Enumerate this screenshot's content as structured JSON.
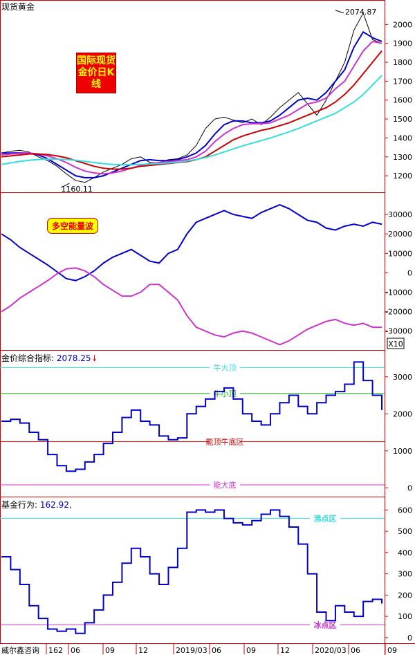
{
  "colors": {
    "blue": "#0000cc",
    "magenta": "#cc33cc",
    "red": "#cc0000",
    "cyan": "#33dddd",
    "green": "#00aa00",
    "black": "#000000"
  },
  "chart_data": [
    {
      "type": "line",
      "title": "现货黄金",
      "badge": "国际现货金价日K线",
      "annotations": [
        {
          "label": "2074.87",
          "x": 216,
          "y": 2074.87
        },
        {
          "label": "1160.11",
          "x": 44,
          "y": 1160.11
        }
      ],
      "ylim": [
        1120,
        2100
      ],
      "yticks": [
        "1200",
        "1300",
        "1400",
        "1500",
        "1600",
        "1700",
        "1800",
        "1900",
        "2000"
      ],
      "x": [
        0,
        6,
        12,
        18,
        24,
        30,
        36,
        42,
        48,
        54,
        60,
        66,
        72,
        78,
        84,
        90,
        96,
        102,
        108,
        114,
        120,
        126,
        132,
        138,
        144,
        150,
        156,
        162,
        168,
        174,
        180,
        186,
        192,
        198,
        204,
        210,
        216,
        222,
        228,
        234,
        240,
        246
      ],
      "series": [
        {
          "name": "",
          "color": "#000000",
          "values": [
            1320,
            1330,
            1335,
            1325,
            1300,
            1280,
            1250,
            1210,
            1175,
            1165,
            1190,
            1220,
            1240,
            1260,
            1290,
            1300,
            1270,
            1270,
            1285,
            1290,
            1310,
            1360,
            1450,
            1500,
            1510,
            1495,
            1480,
            1500,
            1470,
            1510,
            1560,
            1600,
            1640,
            1580,
            1520,
            1600,
            1700,
            1800,
            1970,
            2060,
            1920,
            1900
          ]
        },
        {
          "name": "",
          "color": "#0000cc",
          "values": [
            1320,
            1320,
            1320,
            1320,
            1310,
            1290,
            1260,
            1230,
            1200,
            1190,
            1190,
            1200,
            1220,
            1240,
            1260,
            1280,
            1285,
            1280,
            1280,
            1285,
            1300,
            1320,
            1360,
            1420,
            1470,
            1490,
            1490,
            1480,
            1480,
            1490,
            1520,
            1560,
            1600,
            1610,
            1600,
            1640,
            1700,
            1760,
            1880,
            1960,
            1930,
            1910
          ]
        },
        {
          "name": "",
          "color": "#cc33cc",
          "values": [
            1310,
            1315,
            1318,
            1320,
            1315,
            1305,
            1290,
            1270,
            1245,
            1225,
            1215,
            1210,
            1215,
            1225,
            1240,
            1255,
            1265,
            1270,
            1275,
            1280,
            1285,
            1300,
            1330,
            1380,
            1420,
            1450,
            1470,
            1475,
            1475,
            1480,
            1500,
            1520,
            1550,
            1580,
            1590,
            1610,
            1660,
            1700,
            1780,
            1860,
            1910,
            1900
          ]
        },
        {
          "name": "",
          "color": "#cc0000",
          "values": [
            1300,
            1305,
            1310,
            1315,
            1315,
            1312,
            1305,
            1295,
            1280,
            1265,
            1250,
            1240,
            1235,
            1235,
            1240,
            1250,
            1255,
            1260,
            1265,
            1270,
            1275,
            1285,
            1300,
            1330,
            1360,
            1390,
            1410,
            1425,
            1440,
            1450,
            1465,
            1480,
            1500,
            1520,
            1540,
            1560,
            1590,
            1630,
            1680,
            1740,
            1800,
            1860
          ]
        },
        {
          "name": "",
          "color": "#33dddd",
          "values": [
            1260,
            1268,
            1276,
            1282,
            1286,
            1288,
            1288,
            1286,
            1282,
            1276,
            1270,
            1264,
            1260,
            1258,
            1258,
            1260,
            1262,
            1265,
            1268,
            1272,
            1278,
            1286,
            1296,
            1310,
            1326,
            1342,
            1358,
            1372,
            1386,
            1400,
            1416,
            1432,
            1450,
            1470,
            1490,
            1510,
            1530,
            1560,
            1590,
            1630,
            1680,
            1730
          ]
        }
      ]
    },
    {
      "type": "line",
      "title": "",
      "badge": "多空能量波",
      "ylim": [
        -39000,
        40000
      ],
      "yticks": [
        "-30000",
        "-20000",
        "-10000",
        "0",
        "10000",
        "20000",
        "30000"
      ],
      "scale_label": "X10",
      "x": [
        0,
        6,
        12,
        18,
        24,
        30,
        36,
        42,
        48,
        54,
        60,
        66,
        72,
        78,
        84,
        90,
        96,
        102,
        108,
        114,
        120,
        126,
        132,
        138,
        144,
        150,
        156,
        162,
        168,
        174,
        180,
        186,
        192,
        198,
        204,
        210,
        216,
        222,
        228,
        234,
        240,
        246
      ],
      "series": [
        {
          "name": "",
          "color": "#0000cc",
          "values": [
            20000,
            17000,
            13000,
            10000,
            7000,
            4000,
            500,
            -3000,
            -4000,
            -2000,
            1000,
            5000,
            8000,
            10000,
            12000,
            9000,
            6000,
            5000,
            10000,
            12000,
            20000,
            26000,
            28000,
            30000,
            32000,
            30000,
            29000,
            28000,
            31000,
            33000,
            35000,
            33000,
            30000,
            27000,
            26000,
            23000,
            22000,
            24000,
            25000,
            24000,
            26000,
            25000
          ]
        },
        {
          "name": "",
          "color": "#cc33cc",
          "values": [
            -20000,
            -17000,
            -13000,
            -10000,
            -7000,
            -4000,
            -500,
            2000,
            2500,
            1000,
            -2000,
            -6000,
            -9000,
            -12000,
            -12000,
            -10000,
            -6000,
            -6000,
            -10000,
            -14000,
            -22000,
            -28000,
            -30000,
            -32000,
            -33000,
            -31000,
            -30000,
            -31000,
            -33000,
            -35000,
            -37000,
            -35000,
            -32000,
            -29000,
            -27000,
            -25000,
            -24000,
            -26000,
            -27000,
            -26000,
            -28000,
            -28000
          ]
        }
      ]
    },
    {
      "type": "line",
      "title": "金价综合指标:",
      "value_label": "2078.25",
      "ylim": [
        -200,
        3650
      ],
      "yticks": [
        "0",
        "1000",
        "2000",
        "3000"
      ],
      "levels": [
        {
          "label": "牛大顶",
          "y": 3250,
          "color": "#33dddd"
        },
        {
          "label": "牛小顶",
          "y": 2550,
          "color": "#00aa00"
        },
        {
          "label": "能顶牛底区",
          "y": 1250,
          "color": "#cc0000"
        },
        {
          "label": "能大底",
          "y": 80,
          "color": "#cc33cc"
        }
      ],
      "x": [
        0,
        6,
        12,
        18,
        24,
        30,
        36,
        42,
        48,
        54,
        60,
        66,
        72,
        78,
        84,
        90,
        96,
        102,
        108,
        114,
        120,
        126,
        132,
        138,
        144,
        150,
        156,
        162,
        168,
        174,
        180,
        186,
        192,
        198,
        204,
        210,
        216,
        222,
        228,
        234,
        240,
        246
      ],
      "series": [
        {
          "name": "",
          "color": "#0000cc",
          "values": [
            1800,
            1850,
            1750,
            1500,
            1300,
            900,
            600,
            450,
            500,
            700,
            900,
            1200,
            1500,
            1900,
            2100,
            1800,
            1700,
            1400,
            1300,
            1350,
            2000,
            2200,
            2400,
            2600,
            2700,
            2400,
            2000,
            1800,
            1700,
            2000,
            2300,
            2500,
            2200,
            2000,
            2300,
            2500,
            2600,
            2800,
            3400,
            2900,
            2500,
            2100
          ]
        }
      ]
    },
    {
      "type": "line",
      "title": "基金行为:",
      "value_label": "162.92,",
      "ylim": [
        -20,
        650
      ],
      "yticks": [
        "0",
        "100",
        "200",
        "300",
        "400",
        "500",
        "600"
      ],
      "levels": [
        {
          "label": "沸点区",
          "y": 560,
          "color": "#33dddd"
        },
        {
          "label": "冰点区",
          "y": 60,
          "color": "#cc33cc"
        }
      ],
      "x": [
        0,
        6,
        12,
        18,
        24,
        30,
        36,
        42,
        48,
        54,
        60,
        66,
        72,
        78,
        84,
        90,
        96,
        102,
        108,
        114,
        120,
        126,
        132,
        138,
        144,
        150,
        156,
        162,
        168,
        174,
        180,
        186,
        192,
        198,
        204,
        210,
        216,
        222,
        228,
        234,
        240,
        246
      ],
      "series": [
        {
          "name": "",
          "color": "#0000cc",
          "values": [
            380,
            320,
            250,
            150,
            90,
            40,
            30,
            40,
            20,
            70,
            130,
            200,
            260,
            350,
            420,
            380,
            300,
            250,
            330,
            420,
            590,
            600,
            590,
            600,
            560,
            540,
            530,
            550,
            580,
            600,
            570,
            520,
            440,
            300,
            120,
            80,
            150,
            120,
            100,
            170,
            180,
            160
          ]
        }
      ]
    }
  ],
  "xaxis": {
    "labels": [
      "威尔鑫咨询",
      "162",
      "06",
      "09",
      "12",
      "2019/03",
      "06",
      "09",
      "12",
      "2020/03",
      "06",
      "09"
    ]
  }
}
